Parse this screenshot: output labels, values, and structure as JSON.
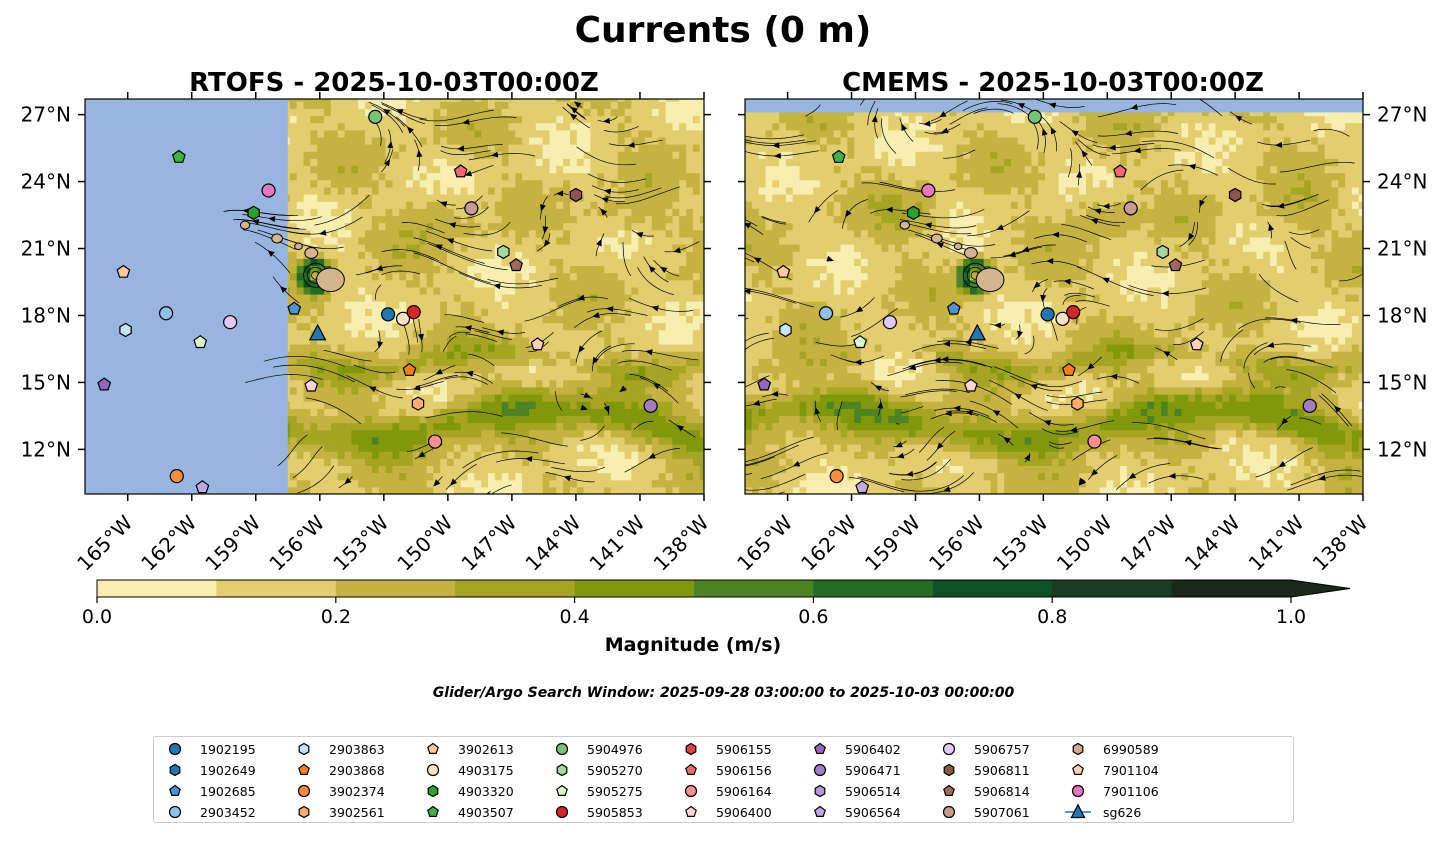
{
  "chart_data": {
    "type": "map-contour",
    "suptitle": "Currents (0 m)",
    "panels": [
      {
        "name": "rtofs",
        "title": "RTOFS - 2025-10-03T00:00Z",
        "land_mask_west_of_lon": -157.5
      },
      {
        "name": "cmems",
        "title": "CMEMS - 2025-10-03T00:00Z",
        "land_mask_west_of_lon": null
      }
    ],
    "lon_range": [
      -167,
      -138
    ],
    "lat_range": [
      10,
      27.7
    ],
    "lon_ticks": [
      -165,
      -162,
      -159,
      -156,
      -153,
      -150,
      -147,
      -144,
      -141,
      -138
    ],
    "lon_tick_labels": [
      "165°W",
      "162°W",
      "159°W",
      "156°W",
      "153°W",
      "150°W",
      "147°W",
      "144°W",
      "141°W",
      "138°W"
    ],
    "lat_ticks": [
      12,
      15,
      18,
      21,
      24,
      27
    ],
    "lat_tick_labels": [
      "12°N",
      "15°N",
      "18°N",
      "21°N",
      "24°N",
      "27°N"
    ],
    "colorbar": {
      "label": "Magnitude (m/s)",
      "range": [
        0,
        1
      ],
      "bounds": [
        0,
        0.1,
        0.2,
        0.3,
        0.4,
        0.5,
        0.6,
        0.7,
        0.8,
        0.9,
        1.0
      ],
      "ticks": [
        0,
        0.2,
        0.4,
        0.6,
        0.8,
        1.0
      ],
      "tick_labels": [
        "0.0",
        "0.2",
        "0.4",
        "0.6",
        "0.8",
        "1.0"
      ],
      "colors": [
        "#f7eeaf",
        "#e2cd6f",
        "#c5b341",
        "#a5a523",
        "#82980c",
        "#4e8322",
        "#246b27",
        "#0b5226",
        "#1c3b25",
        "#1b291c"
      ],
      "extend": "max"
    },
    "colors": {
      "land": "#d3b48c",
      "ocean_mask": "#98b5e0",
      "low_field": "#eedf92",
      "mid_field": "#c8b648",
      "strong_field": "#3d7a2a",
      "streamline": "#000000"
    },
    "eddy": {
      "lon": -156.2,
      "lat": 19.8
    },
    "hawaii": [
      {
        "lon": -155.5,
        "lat": 19.6,
        "r": 0.65
      },
      {
        "lon": -156.4,
        "lat": 20.8,
        "r": 0.3
      },
      {
        "lon": -157.0,
        "lat": 21.1,
        "r": 0.18
      },
      {
        "lon": -158.0,
        "lat": 21.45,
        "r": 0.25
      },
      {
        "lon": -159.5,
        "lat": 22.05,
        "r": 0.22
      }
    ],
    "floats": [
      {
        "id": "1902195",
        "shape": "circle",
        "color": "#1f77b4",
        "lon": -152.8,
        "lat": 18.05
      },
      {
        "id": "1902649",
        "shape": "hexagon",
        "color": "#1f77b4",
        "lon": null,
        "lat": null
      },
      {
        "id": "1902685",
        "shape": "pentagon",
        "color": "#4b92cf",
        "lon": -157.2,
        "lat": 18.3
      },
      {
        "id": "2903452",
        "shape": "circle",
        "color": "#8ec1e6",
        "lon": -163.2,
        "lat": 18.1
      },
      {
        "id": "2903863",
        "shape": "hexagon",
        "color": "#c6e3f7",
        "lon": -165.1,
        "lat": 17.35
      },
      {
        "id": "2903868",
        "shape": "pentagon",
        "color": "#ff7f0e",
        "lon": -151.8,
        "lat": 15.55
      },
      {
        "id": "3902374",
        "shape": "circle",
        "color": "#fd8d3c",
        "lon": -162.7,
        "lat": 10.8
      },
      {
        "id": "3902561",
        "shape": "hexagon",
        "color": "#fdae6b",
        "lon": -151.4,
        "lat": 14.05
      },
      {
        "id": "3902613",
        "shape": "pentagon",
        "color": "#fdc997",
        "lon": -165.2,
        "lat": 19.95
      },
      {
        "id": "4903175",
        "shape": "circle",
        "color": "#fee2c4",
        "lon": -152.1,
        "lat": 17.85
      },
      {
        "id": "4903320",
        "shape": "hexagon",
        "color": "#2ca02c",
        "lon": -159.1,
        "lat": 22.6
      },
      {
        "id": "4903507",
        "shape": "pentagon",
        "color": "#3fb443",
        "lon": -162.6,
        "lat": 25.1
      },
      {
        "id": "5904976",
        "shape": "circle",
        "color": "#74c476",
        "lon": -153.4,
        "lat": 26.9
      },
      {
        "id": "5905270",
        "shape": "hexagon",
        "color": "#a1d99b",
        "lon": -147.4,
        "lat": 20.85
      },
      {
        "id": "5905275",
        "shape": "pentagon",
        "color": "#d9f7c8",
        "lon": -161.6,
        "lat": 16.8
      },
      {
        "id": "5905853",
        "shape": "circle",
        "color": "#d62728",
        "lon": -151.6,
        "lat": 18.15
      },
      {
        "id": "5906155",
        "shape": "hexagon",
        "color": "#e04144",
        "lon": null,
        "lat": null
      },
      {
        "id": "5906156",
        "shape": "pentagon",
        "color": "#ef6b6e",
        "lon": -149.4,
        "lat": 24.45
      },
      {
        "id": "5906164",
        "shape": "circle",
        "color": "#f4918f",
        "lon": -150.6,
        "lat": 12.35
      },
      {
        "id": "5906400",
        "shape": "pentagon",
        "color": "#fcd4d1",
        "lon": -156.4,
        "lat": 14.85
      },
      {
        "id": "5906402",
        "shape": "pentagon",
        "color": "#9467bd",
        "lon": -166.1,
        "lat": 14.9
      },
      {
        "id": "5906471",
        "shape": "circle",
        "color": "#a07cc5",
        "lon": -140.5,
        "lat": 13.95
      },
      {
        "id": "5906514",
        "shape": "hexagon",
        "color": "#b597d6",
        "lon": null,
        "lat": null
      },
      {
        "id": "5906564",
        "shape": "pentagon",
        "color": "#c3a6e6",
        "lon": -161.5,
        "lat": 10.3
      },
      {
        "id": "5906757",
        "shape": "circle",
        "color": "#e2c8f7",
        "lon": -160.2,
        "lat": 17.7
      },
      {
        "id": "5906811",
        "shape": "hexagon",
        "color": "#8c564b",
        "lon": -144,
        "lat": 23.4
      },
      {
        "id": "5906814",
        "shape": "pentagon",
        "color": "#9f6a5e",
        "lon": -146.8,
        "lat": 20.25
      },
      {
        "id": "5907061",
        "shape": "circle",
        "color": "#c49c94",
        "lon": -148.9,
        "lat": 22.8
      },
      {
        "id": "6990589",
        "shape": "hexagon",
        "color": "#d8a49c",
        "lon": null,
        "lat": null
      },
      {
        "id": "7901104",
        "shape": "pentagon",
        "color": "#ffd1bd",
        "lon": -145.8,
        "lat": 16.7
      },
      {
        "id": "7901106",
        "shape": "circle",
        "color": "#e377c2",
        "lon": -158.4,
        "lat": 23.6
      },
      {
        "id": "sg626",
        "shape": "triangle",
        "color": "#1f77b4",
        "lon": -156.1,
        "lat": 17.2
      }
    ],
    "search_window": "Glider/Argo Search Window: 2025-09-28 03:00:00 to 2025-10-03 00:00:00"
  }
}
